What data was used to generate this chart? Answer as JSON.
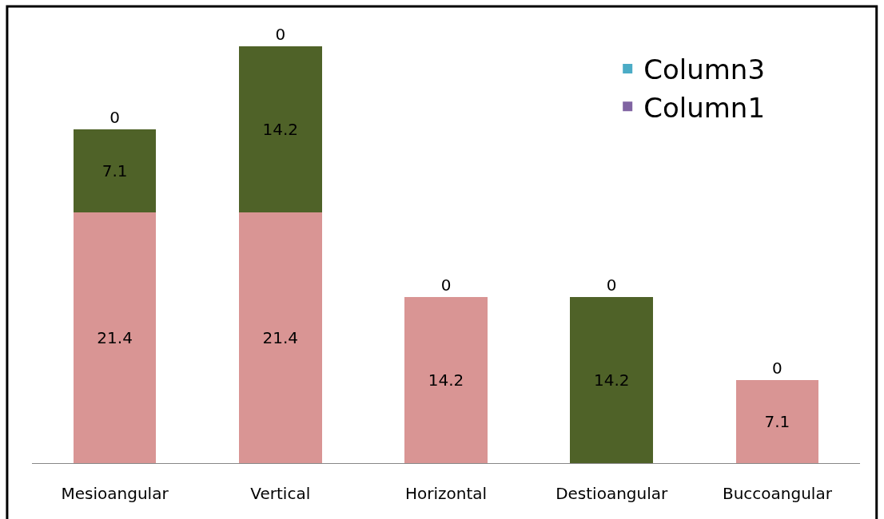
{
  "chart_data": {
    "type": "bar",
    "stacked": true,
    "categories": [
      "Mesioangular",
      "Vertical",
      "Horizontal",
      "Destioangular",
      "Buccoangular"
    ],
    "series": [
      {
        "color": "#d99594",
        "values": [
          21.4,
          21.4,
          14.2,
          0,
          7.1
        ],
        "value_labels": [
          "21.4",
          "21.4",
          "14.2",
          null,
          "7.1"
        ]
      },
      {
        "color": "#4f6228",
        "values": [
          7.1,
          14.2,
          0,
          14.2,
          0
        ],
        "value_labels": [
          "7.1",
          "14.2",
          null,
          "14.2",
          null
        ]
      },
      {
        "name": "Column3",
        "color": "#4bacc6",
        "values": [
          0,
          0,
          0,
          0,
          0
        ],
        "value_labels": [
          null,
          null,
          null,
          null,
          null
        ]
      },
      {
        "name": "Column1",
        "color": "#8064a2",
        "values": [
          0,
          0,
          0,
          0,
          0
        ],
        "value_labels": [
          "0",
          "0",
          "0",
          "0",
          "0"
        ]
      }
    ],
    "legend": "top right"
  }
}
